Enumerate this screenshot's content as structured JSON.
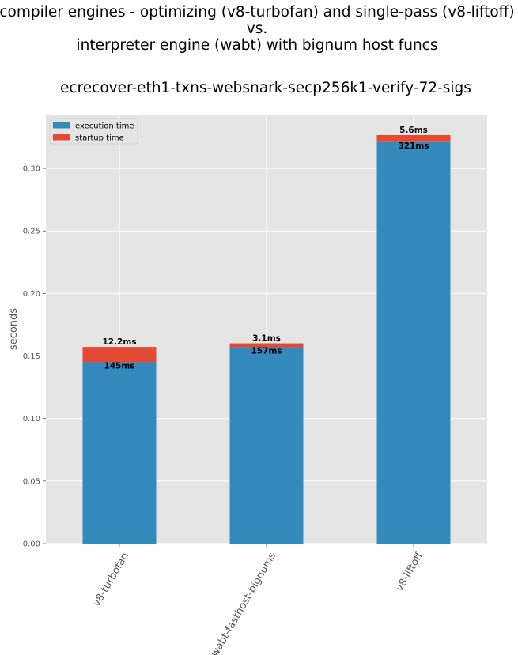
{
  "chart_data": {
    "type": "bar",
    "stacked": true,
    "suptitle_lines": [
      "compiler engines - optimizing (v8-turbofan) and single-pass (v8-liftoff)",
      "vs.",
      "interpreter engine (wabt) with bignum host funcs"
    ],
    "title": "ecrecover-eth1-txns-websnark-secp256k1-verify-72-sigs",
    "xlabel": "",
    "ylabel": "seconds",
    "categories": [
      "v8-turbofan",
      "wabt-fasthost-bignums",
      "v8-liftoff"
    ],
    "series": [
      {
        "name": "execution time",
        "color": "#348abd",
        "values": [
          0.145,
          0.157,
          0.321
        ],
        "labels": [
          "145ms",
          "157ms",
          "321ms"
        ]
      },
      {
        "name": "startup time",
        "color": "#e24a33",
        "values": [
          0.0122,
          0.0031,
          0.0056
        ],
        "labels": [
          "12.2ms",
          "3.1ms",
          "5.6ms"
        ]
      }
    ],
    "ylim": [
      0,
      0.343
    ],
    "yticks": [
      0.0,
      0.05,
      0.1,
      0.15,
      0.2,
      0.25,
      0.3
    ],
    "ytick_labels": [
      "0.00",
      "0.05",
      "0.10",
      "0.15",
      "0.20",
      "0.25",
      "0.30"
    ],
    "grid": true,
    "legend_position": "top-left",
    "background": "#e5e5e5"
  }
}
